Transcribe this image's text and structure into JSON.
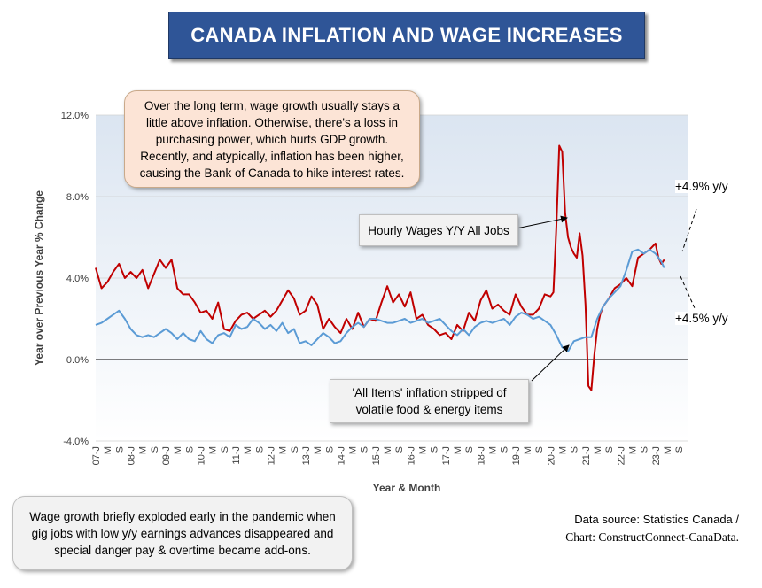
{
  "title": "CANADA INFLATION AND WAGE INCREASES",
  "annotations": {
    "top_note": "Over the long term, wage growth usually stays a little above inflation. Otherwise, there's a loss in purchasing power, which hurts GDP growth. Recently, and atypically, inflation has been higher, causing the Bank of Canada to hike interest rates.",
    "bottom_note": "Wage growth briefly exploded early in the pandemic when gig jobs with low y/y earnings advances disappeared and special danger pay & overtime became add-ons.",
    "wages_label": "Hourly Wages Y/Y All Jobs",
    "inflation_label": "'All Items' inflation stripped of volatile food & energy items",
    "wages_latest": "+4.9% y/y",
    "inflation_latest": "+4.5% y/y"
  },
  "source": {
    "line1": "Data source: Statistics Canada /",
    "line2": "Chart: ConstructConnect-CanaData."
  },
  "colors": {
    "wages": "#c00000",
    "inflation": "#5b9bd5",
    "title_bg": "#2f5597",
    "plot_bg_top": "#dbe5f1",
    "plot_bg_bottom": "#ffffff"
  },
  "chart_data": {
    "type": "line",
    "title": "CANADA INFLATION AND WAGE INCREASES",
    "xlabel": "Year & Month",
    "ylabel": "Year over Previous Year % Change",
    "ylim": [
      -4,
      12
    ],
    "yticks": [
      "-4.0%",
      "0.0%",
      "4.0%",
      "8.0%",
      "12.0%"
    ],
    "x_tick_labels": [
      "07-J",
      "M",
      "S",
      "08-J",
      "M",
      "S",
      "09-J",
      "M",
      "S",
      "10-J",
      "M",
      "S",
      "11-J",
      "M",
      "S",
      "12-J",
      "M",
      "S",
      "13-J",
      "M",
      "S",
      "14-J",
      "M",
      "S",
      "15-J",
      "M",
      "S",
      "16-J",
      "M",
      "S",
      "17-J",
      "M",
      "S",
      "18-J",
      "M",
      "S",
      "19-J",
      "M",
      "S",
      "20-J",
      "M",
      "S",
      "21-J",
      "M",
      "S",
      "22-J",
      "M",
      "S",
      "23-J",
      "M",
      "S"
    ],
    "x_start": "2007-01",
    "x_end": "2023-12",
    "grid": "horizontal",
    "series": [
      {
        "name": "Hourly Wages Y/Y All Jobs",
        "x": [
          "2007-01",
          "2007-03",
          "2007-05",
          "2007-07",
          "2007-09",
          "2007-11",
          "2008-01",
          "2008-03",
          "2008-05",
          "2008-07",
          "2008-09",
          "2008-11",
          "2009-01",
          "2009-03",
          "2009-05",
          "2009-07",
          "2009-09",
          "2009-11",
          "2010-01",
          "2010-03",
          "2010-05",
          "2010-07",
          "2010-09",
          "2010-11",
          "2011-01",
          "2011-03",
          "2011-05",
          "2011-07",
          "2011-09",
          "2011-11",
          "2012-01",
          "2012-03",
          "2012-05",
          "2012-07",
          "2012-09",
          "2012-11",
          "2013-01",
          "2013-03",
          "2013-05",
          "2013-07",
          "2013-09",
          "2013-11",
          "2014-01",
          "2014-03",
          "2014-05",
          "2014-07",
          "2014-09",
          "2014-11",
          "2015-01",
          "2015-03",
          "2015-05",
          "2015-07",
          "2015-09",
          "2015-11",
          "2016-01",
          "2016-03",
          "2016-05",
          "2016-07",
          "2016-09",
          "2016-11",
          "2017-01",
          "2017-03",
          "2017-05",
          "2017-07",
          "2017-09",
          "2017-11",
          "2018-01",
          "2018-03",
          "2018-05",
          "2018-07",
          "2018-09",
          "2018-11",
          "2019-01",
          "2019-03",
          "2019-05",
          "2019-07",
          "2019-09",
          "2019-11",
          "2020-01",
          "2020-02",
          "2020-03",
          "2020-04",
          "2020-05",
          "2020-06",
          "2020-07",
          "2020-08",
          "2020-09",
          "2020-10",
          "2020-11",
          "2020-12",
          "2021-01",
          "2021-02",
          "2021-03",
          "2021-04",
          "2021-05",
          "2021-06",
          "2021-07",
          "2021-09",
          "2021-11",
          "2022-01",
          "2022-03",
          "2022-05",
          "2022-07",
          "2022-09",
          "2022-11",
          "2023-01",
          "2023-02",
          "2023-03",
          "2023-04"
        ],
        "values": [
          4.5,
          3.5,
          3.8,
          4.3,
          4.7,
          4.0,
          4.3,
          4.0,
          4.4,
          3.5,
          4.2,
          4.9,
          4.5,
          4.9,
          3.5,
          3.2,
          3.2,
          2.8,
          2.3,
          2.4,
          2.0,
          2.8,
          1.5,
          1.4,
          1.9,
          2.2,
          2.3,
          2.0,
          2.2,
          2.4,
          2.1,
          2.4,
          2.9,
          3.4,
          3.0,
          2.2,
          2.4,
          3.1,
          2.7,
          1.5,
          2.0,
          1.6,
          1.3,
          2.0,
          1.5,
          2.3,
          1.6,
          2.0,
          1.9,
          2.8,
          3.6,
          2.8,
          3.2,
          2.6,
          3.3,
          2.0,
          2.2,
          1.7,
          1.5,
          1.2,
          1.3,
          1.0,
          1.7,
          1.4,
          2.3,
          1.9,
          2.9,
          3.4,
          2.5,
          2.7,
          2.4,
          2.2,
          3.2,
          2.6,
          2.2,
          2.2,
          2.5,
          3.2,
          3.1,
          3.3,
          6.5,
          10.5,
          10.2,
          7.2,
          6.0,
          5.5,
          5.2,
          5.0,
          6.2,
          5.1,
          2.7,
          -1.3,
          -1.5,
          0.2,
          1.5,
          2.2,
          2.6,
          3.0,
          3.5,
          3.7,
          4.0,
          3.6,
          5.0,
          5.2,
          5.4,
          5.7,
          5.0,
          4.7,
          4.9
        ]
      },
      {
        "name": "'All Items' inflation stripped of volatile food & energy items",
        "x": [
          "2007-01",
          "2007-03",
          "2007-05",
          "2007-07",
          "2007-09",
          "2007-11",
          "2008-01",
          "2008-03",
          "2008-05",
          "2008-07",
          "2008-09",
          "2008-11",
          "2009-01",
          "2009-03",
          "2009-05",
          "2009-07",
          "2009-09",
          "2009-11",
          "2010-01",
          "2010-03",
          "2010-05",
          "2010-07",
          "2010-09",
          "2010-11",
          "2011-01",
          "2011-03",
          "2011-05",
          "2011-07",
          "2011-09",
          "2011-11",
          "2012-01",
          "2012-03",
          "2012-05",
          "2012-07",
          "2012-09",
          "2012-11",
          "2013-01",
          "2013-03",
          "2013-05",
          "2013-07",
          "2013-09",
          "2013-11",
          "2014-01",
          "2014-03",
          "2014-05",
          "2014-07",
          "2014-09",
          "2014-11",
          "2015-01",
          "2015-03",
          "2015-05",
          "2015-07",
          "2015-09",
          "2015-11",
          "2016-01",
          "2016-03",
          "2016-05",
          "2016-07",
          "2016-09",
          "2016-11",
          "2017-01",
          "2017-03",
          "2017-05",
          "2017-07",
          "2017-09",
          "2017-11",
          "2018-01",
          "2018-03",
          "2018-05",
          "2018-07",
          "2018-09",
          "2018-11",
          "2019-01",
          "2019-03",
          "2019-05",
          "2019-07",
          "2019-09",
          "2019-11",
          "2020-01",
          "2020-03",
          "2020-05",
          "2020-07",
          "2020-09",
          "2020-11",
          "2021-01",
          "2021-03",
          "2021-05",
          "2021-07",
          "2021-09",
          "2021-11",
          "2022-01",
          "2022-03",
          "2022-05",
          "2022-07",
          "2022-09",
          "2022-11",
          "2023-01",
          "2023-02",
          "2023-03",
          "2023-04"
        ],
        "values": [
          1.7,
          1.8,
          2.0,
          2.2,
          2.4,
          2.0,
          1.5,
          1.2,
          1.1,
          1.2,
          1.1,
          1.3,
          1.5,
          1.3,
          1.0,
          1.3,
          1.0,
          0.9,
          1.4,
          1.0,
          0.8,
          1.2,
          1.3,
          1.1,
          1.7,
          1.5,
          1.6,
          2.0,
          1.8,
          1.5,
          1.7,
          1.4,
          1.8,
          1.3,
          1.5,
          0.8,
          0.9,
          0.7,
          1.0,
          1.3,
          1.1,
          0.8,
          0.9,
          1.3,
          1.6,
          1.8,
          1.6,
          2.0,
          2.0,
          1.9,
          1.8,
          1.8,
          1.9,
          2.0,
          1.8,
          1.9,
          2.0,
          1.8,
          1.9,
          2.0,
          1.7,
          1.4,
          1.2,
          1.5,
          1.2,
          1.6,
          1.8,
          1.9,
          1.8,
          1.9,
          2.0,
          1.7,
          2.1,
          2.3,
          2.2,
          2.0,
          2.1,
          1.9,
          1.7,
          1.2,
          0.6,
          0.4,
          0.9,
          1.0,
          1.1,
          1.1,
          2.0,
          2.6,
          3.0,
          3.3,
          3.6,
          4.4,
          5.3,
          5.4,
          5.2,
          5.4,
          5.2,
          5.0,
          4.8,
          4.5
        ]
      }
    ]
  }
}
